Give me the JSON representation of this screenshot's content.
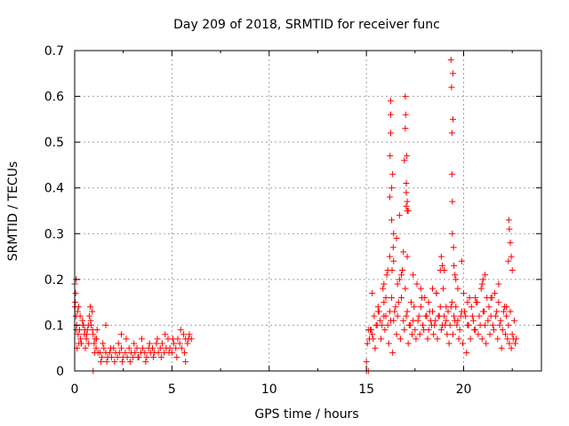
{
  "chart_data": {
    "type": "scatter",
    "title": "Day 209 of 2018, SRMTID for receiver func",
    "xlabel": "GPS time / hours",
    "ylabel": "SRMTID / TECUs",
    "xlim": [
      0,
      24
    ],
    "ylim": [
      0,
      0.7
    ],
    "grid": true,
    "marker": "+",
    "x_ticks": [
      "0",
      "5",
      "10",
      "15",
      "20"
    ],
    "x_tick_values": [
      0,
      5,
      10,
      15,
      20
    ],
    "y_ticks": [
      "0",
      "0.1",
      "0.2",
      "0.3",
      "0.4",
      "0.5",
      "0.6",
      "0.7"
    ],
    "y_tick_values": [
      0,
      0.1,
      0.2,
      0.3,
      0.4,
      0.5,
      0.6,
      0.7
    ],
    "series": [
      {
        "name": "SRMTID",
        "color": "#ff0000",
        "x": [
          0.0,
          0.03,
          0.06,
          0.1,
          0.15,
          0.2,
          0.25,
          0.3,
          0.35,
          0.4,
          0.45,
          0.5,
          0.55,
          0.6,
          0.65,
          0.7,
          0.75,
          0.8,
          0.85,
          0.9,
          0.95,
          1.0,
          1.05,
          1.1,
          1.15,
          1.2,
          1.3,
          1.4,
          1.5,
          1.6,
          1.7,
          1.8,
          1.9,
          2.0,
          2.1,
          2.2,
          2.3,
          2.4,
          2.5,
          2.6,
          2.7,
          2.8,
          2.9,
          3.0,
          3.1,
          3.2,
          3.3,
          3.4,
          3.5,
          3.6,
          3.7,
          3.8,
          3.9,
          4.0,
          4.1,
          4.2,
          4.3,
          4.4,
          4.5,
          4.6,
          4.7,
          4.8,
          4.9,
          5.0,
          5.1,
          5.2,
          5.3,
          5.4,
          5.5,
          5.6,
          5.7,
          5.8,
          5.9,
          6.0,
          0.05,
          0.12,
          0.18,
          0.22,
          0.28,
          0.33,
          0.42,
          0.52,
          0.62,
          0.72,
          0.82,
          0.92,
          1.02,
          1.12,
          1.35,
          1.45,
          1.65,
          1.85,
          2.05,
          2.25,
          2.45,
          2.65,
          2.85,
          3.05,
          3.25,
          3.45,
          3.65,
          3.85,
          4.05,
          4.25,
          4.45,
          4.65,
          4.85,
          5.05,
          5.25,
          5.45,
          5.65,
          5.85,
          1.6,
          2.4,
          5.7,
          0.08,
          0.95,
          0.02,
          0.07,
          15.0,
          15.1,
          15.2,
          15.3,
          15.4,
          15.5,
          15.6,
          15.7,
          15.8,
          15.9,
          16.0,
          16.1,
          16.2,
          16.3,
          16.4,
          16.5,
          16.6,
          16.7,
          16.8,
          16.9,
          17.0,
          17.1,
          17.2,
          17.3,
          17.4,
          17.5,
          17.6,
          17.7,
          17.8,
          17.9,
          18.0,
          18.1,
          18.2,
          18.3,
          18.4,
          18.5,
          18.6,
          18.7,
          18.8,
          18.9,
          19.0,
          19.1,
          19.2,
          19.3,
          19.4,
          19.5,
          19.6,
          19.7,
          19.8,
          19.9,
          20.0,
          20.1,
          20.2,
          20.3,
          20.4,
          20.5,
          20.6,
          20.7,
          20.8,
          20.9,
          21.0,
          21.1,
          21.2,
          21.3,
          21.4,
          21.5,
          21.6,
          21.7,
          21.8,
          21.9,
          22.0,
          22.1,
          22.2,
          22.3,
          22.4,
          22.5,
          22.6,
          22.7,
          15.05,
          15.15,
          15.25,
          15.35,
          15.45,
          15.55,
          15.65,
          15.75,
          15.85,
          15.95,
          16.05,
          16.15,
          16.25,
          16.35,
          16.45,
          16.55,
          16.65,
          16.75,
          16.85,
          16.95,
          17.05,
          17.15,
          17.25,
          17.35,
          17.45,
          17.55,
          17.65,
          17.75,
          17.85,
          17.95,
          18.05,
          18.15,
          18.25,
          18.35,
          18.45,
          18.55,
          18.65,
          18.75,
          18.85,
          18.95,
          19.05,
          19.15,
          19.25,
          19.35,
          19.45,
          19.55,
          19.65,
          19.75,
          19.85,
          19.95,
          20.05,
          20.15,
          20.25,
          20.35,
          20.45,
          20.55,
          20.65,
          20.75,
          20.85,
          20.95,
          21.05,
          21.15,
          21.25,
          21.35,
          21.45,
          21.55,
          21.65,
          21.75,
          21.85,
          21.95,
          22.05,
          22.15,
          22.25,
          22.35,
          22.45,
          22.55,
          22.65,
          16.2,
          16.2,
          16.22,
          16.25,
          16.25,
          16.25,
          16.3,
          16.3,
          16.32,
          16.35,
          16.38,
          16.4,
          16.4,
          16.55,
          16.6,
          16.7,
          16.9,
          16.95,
          17.0,
          17.0,
          17.02,
          17.05,
          17.05,
          17.05,
          17.08,
          17.1,
          17.1,
          17.1,
          17.15,
          18.8,
          18.85,
          18.9,
          19.35,
          19.38,
          19.4,
          19.4,
          19.42,
          19.42,
          19.45,
          19.45,
          19.48,
          19.5,
          19.55,
          19.6,
          19.9,
          20.95,
          21.0,
          22.3,
          22.32,
          22.35,
          22.4,
          22.45,
          22.5,
          15.9,
          16.8,
          18.4,
          18.6,
          19.0,
          19.7,
          20.6,
          21.1,
          21.8,
          15.3,
          15.6,
          16.0,
          17.4,
          17.8,
          18.2,
          19.1,
          20.2,
          21.4,
          22.2,
          15.0,
          15.1,
          15.9,
          16.1
        ],
        "y": [
          0.19,
          0.15,
          0.12,
          0.1,
          0.13,
          0.14,
          0.09,
          0.07,
          0.06,
          0.11,
          0.1,
          0.08,
          0.05,
          0.07,
          0.09,
          0.1,
          0.12,
          0.14,
          0.1,
          0.13,
          0.08,
          0.06,
          0.07,
          0.05,
          0.09,
          0.04,
          0.04,
          0.03,
          0.05,
          0.04,
          0.03,
          0.04,
          0.03,
          0.05,
          0.04,
          0.03,
          0.04,
          0.05,
          0.03,
          0.04,
          0.03,
          0.05,
          0.04,
          0.03,
          0.04,
          0.05,
          0.03,
          0.04,
          0.05,
          0.04,
          0.03,
          0.05,
          0.04,
          0.05,
          0.04,
          0.06,
          0.04,
          0.05,
          0.06,
          0.04,
          0.05,
          0.07,
          0.05,
          0.04,
          0.06,
          0.05,
          0.07,
          0.06,
          0.05,
          0.08,
          0.07,
          0.06,
          0.08,
          0.07,
          0.17,
          0.05,
          0.08,
          0.06,
          0.12,
          0.06,
          0.1,
          0.09,
          0.08,
          0.06,
          0.11,
          0.09,
          0.04,
          0.07,
          0.02,
          0.06,
          0.02,
          0.05,
          0.02,
          0.06,
          0.02,
          0.07,
          0.02,
          0.06,
          0.03,
          0.07,
          0.02,
          0.06,
          0.03,
          0.07,
          0.03,
          0.08,
          0.04,
          0.07,
          0.03,
          0.09,
          0.04,
          0.07,
          0.1,
          0.08,
          0.02,
          0.09,
          0.0,
          0.14,
          0.2,
          0.0,
          0.0,
          0.09,
          0.08,
          0.12,
          0.1,
          0.14,
          0.11,
          0.1,
          0.15,
          0.12,
          0.22,
          0.13,
          0.16,
          0.11,
          0.14,
          0.12,
          0.2,
          0.16,
          0.11,
          0.18,
          0.13,
          0.1,
          0.15,
          0.11,
          0.09,
          0.19,
          0.12,
          0.14,
          0.1,
          0.16,
          0.12,
          0.09,
          0.11,
          0.13,
          0.1,
          0.17,
          0.12,
          0.14,
          0.1,
          0.12,
          0.11,
          0.13,
          0.1,
          0.15,
          0.12,
          0.14,
          0.11,
          0.09,
          0.13,
          0.17,
          0.12,
          0.1,
          0.16,
          0.14,
          0.11,
          0.09,
          0.15,
          0.12,
          0.18,
          0.13,
          0.1,
          0.16,
          0.14,
          0.12,
          0.1,
          0.17,
          0.13,
          0.15,
          0.11,
          0.09,
          0.14,
          0.12,
          0.1,
          0.13,
          0.08,
          0.11,
          0.07,
          0.06,
          0.07,
          0.09,
          0.07,
          0.05,
          0.1,
          0.13,
          0.07,
          0.18,
          0.09,
          0.21,
          0.06,
          0.11,
          0.04,
          0.13,
          0.08,
          0.15,
          0.07,
          0.22,
          0.09,
          0.12,
          0.06,
          0.1,
          0.08,
          0.14,
          0.07,
          0.11,
          0.08,
          0.16,
          0.09,
          0.12,
          0.07,
          0.13,
          0.1,
          0.08,
          0.11,
          0.07,
          0.12,
          0.09,
          0.18,
          0.1,
          0.08,
          0.06,
          0.14,
          0.08,
          0.11,
          0.1,
          0.07,
          0.12,
          0.06,
          0.13,
          0.04,
          0.1,
          0.07,
          0.12,
          0.09,
          0.15,
          0.08,
          0.1,
          0.07,
          0.13,
          0.06,
          0.11,
          0.08,
          0.16,
          0.09,
          0.12,
          0.07,
          0.1,
          0.05,
          0.13,
          0.08,
          0.07,
          0.06,
          0.05,
          0.07,
          0.06,
          0.25,
          0.38,
          0.47,
          0.52,
          0.56,
          0.59,
          0.4,
          0.33,
          0.22,
          0.43,
          0.27,
          0.3,
          0.24,
          0.29,
          0.19,
          0.34,
          0.26,
          0.46,
          0.53,
          0.6,
          0.56,
          0.39,
          0.36,
          0.41,
          0.47,
          0.37,
          0.35,
          0.25,
          0.35,
          0.22,
          0.25,
          0.23,
          0.68,
          0.62,
          0.52,
          0.43,
          0.37,
          0.3,
          0.55,
          0.65,
          0.27,
          0.23,
          0.21,
          0.2,
          0.24,
          0.19,
          0.2,
          0.24,
          0.33,
          0.31,
          0.28,
          0.25,
          0.22,
          0.19,
          0.21,
          0.18,
          0.17,
          0.22,
          0.18,
          0.16,
          0.21,
          0.19,
          0.17,
          0.13,
          0.16,
          0.21,
          0.18,
          0.15,
          0.14,
          0.15,
          0.16,
          0.14,
          0.02,
          0.09,
          0.12,
          0.1
        ]
      }
    ]
  }
}
